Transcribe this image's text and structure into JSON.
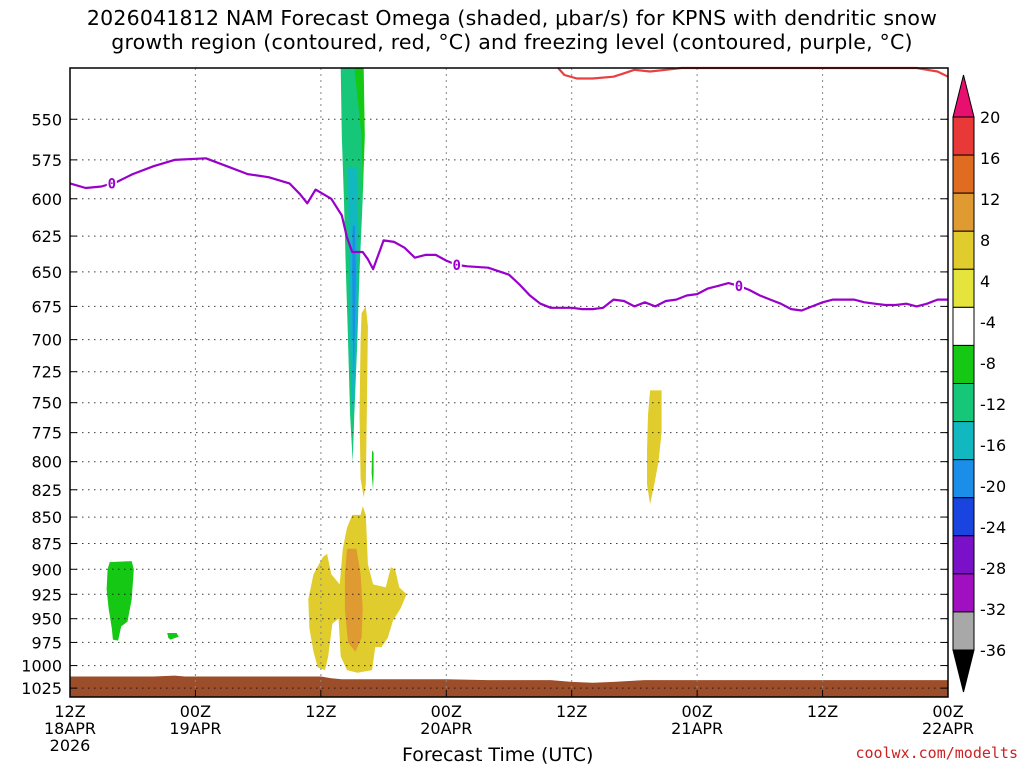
{
  "title": "2026041812 NAM Forecast Omega (shaded, μbar/s) for KPNS with dendritic snow\ngrowth region (contoured, red, °C) and freezing level (contoured, purple, °C)",
  "credit": "coolwx.com/modelts",
  "chart_data": {
    "type": "time-height cross-section",
    "xlabel": "Forecast Time (UTC)",
    "ylabel": "",
    "x_ticks": [
      {
        "line1": "12Z",
        "line2": "18APR",
        "line3": "2026",
        "hours": 0
      },
      {
        "line1": "00Z",
        "line2": "19APR",
        "line3": "",
        "hours": 12
      },
      {
        "line1": "12Z",
        "line2": "",
        "line3": "",
        "hours": 24
      },
      {
        "line1": "00Z",
        "line2": "20APR",
        "line3": "",
        "hours": 36
      },
      {
        "line1": "12Z",
        "line2": "",
        "line3": "",
        "hours": 48
      },
      {
        "line1": "00Z",
        "line2": "21APR",
        "line3": "",
        "hours": 60
      },
      {
        "line1": "12Z",
        "line2": "",
        "line3": "",
        "hours": 72
      },
      {
        "line1": "00Z",
        "line2": "22APR",
        "line3": "",
        "hours": 84
      }
    ],
    "xlim_hours": [
      0,
      84
    ],
    "y_ticks": [
      550,
      575,
      600,
      625,
      650,
      675,
      700,
      725,
      750,
      775,
      800,
      825,
      850,
      875,
      900,
      925,
      950,
      975,
      1000,
      1025
    ],
    "ylim_hPa": [
      520,
      1035
    ],
    "y_scale": "log-pressure",
    "grid": "dotted",
    "colorbar": {
      "labels": [
        "20",
        "16",
        "12",
        "8",
        "4",
        "-4",
        "-8",
        "-12",
        "-16",
        "-20",
        "-24",
        "-28",
        "-32",
        "-36"
      ],
      "colors": [
        "#e8106e",
        "#e83838",
        "#e06c22",
        "#e09a32",
        "#e0cc2c",
        "#e4e43c",
        "#ffffff",
        "#14c814",
        "#16c77a",
        "#12b8c0",
        "#1a8ee8",
        "#1a44e0",
        "#7a10c8",
        "#a010c0",
        "#a8a8a8",
        "#000000"
      ]
    },
    "freezing_level": {
      "label": "0",
      "color": "#9900cc",
      "points": [
        [
          0,
          590
        ],
        [
          1.5,
          593
        ],
        [
          3,
          592
        ],
        [
          4.5,
          589
        ],
        [
          6,
          584
        ],
        [
          8,
          579
        ],
        [
          10,
          575
        ],
        [
          13,
          574
        ],
        [
          15,
          579
        ],
        [
          17,
          584
        ],
        [
          19,
          586
        ],
        [
          21,
          590
        ],
        [
          22,
          597
        ],
        [
          22.7,
          603
        ],
        [
          23.5,
          594
        ],
        [
          25,
          600
        ],
        [
          26,
          611
        ],
        [
          26.5,
          626
        ],
        [
          27,
          636
        ],
        [
          28,
          636
        ],
        [
          28.5,
          641
        ],
        [
          29,
          648
        ],
        [
          30,
          628
        ],
        [
          31,
          629
        ],
        [
          32,
          633
        ],
        [
          33,
          640
        ],
        [
          34,
          638
        ],
        [
          35,
          638
        ],
        [
          36,
          642
        ],
        [
          37,
          645
        ],
        [
          38,
          646
        ],
        [
          40,
          647
        ],
        [
          42,
          652
        ],
        [
          43,
          659
        ],
        [
          44,
          667
        ],
        [
          45,
          673
        ],
        [
          46,
          676
        ],
        [
          48,
          676
        ],
        [
          49,
          677
        ],
        [
          50,
          677
        ],
        [
          51,
          676
        ],
        [
          52,
          670
        ],
        [
          53,
          671
        ],
        [
          54,
          675
        ],
        [
          55,
          672
        ],
        [
          56,
          675
        ],
        [
          57,
          671
        ],
        [
          58,
          670
        ],
        [
          59,
          667
        ],
        [
          60,
          666
        ],
        [
          61,
          662
        ],
        [
          62,
          660
        ],
        [
          63,
          658
        ],
        [
          64,
          660
        ],
        [
          65,
          663
        ],
        [
          66,
          667
        ],
        [
          67,
          670
        ],
        [
          68,
          673
        ],
        [
          69,
          677
        ],
        [
          70,
          678
        ],
        [
          71,
          675
        ],
        [
          72,
          672
        ],
        [
          73,
          670
        ],
        [
          74,
          670
        ],
        [
          75,
          670
        ],
        [
          76,
          672
        ],
        [
          77,
          673
        ],
        [
          78,
          674
        ],
        [
          79,
          674
        ],
        [
          80,
          673
        ],
        [
          81,
          675
        ],
        [
          82,
          673
        ],
        [
          83,
          670
        ],
        [
          84,
          670
        ]
      ]
    },
    "dgz_contour": {
      "color": "#e84040",
      "points": [
        [
          46.7,
          520
        ],
        [
          47.3,
          524
        ],
        [
          48.5,
          526
        ],
        [
          50,
          526
        ],
        [
          52,
          525
        ],
        [
          53,
          523
        ],
        [
          54,
          521
        ],
        [
          55.5,
          522
        ],
        [
          57,
          521
        ],
        [
          58.5,
          520
        ],
        [
          60,
          520
        ],
        [
          61,
          520
        ],
        [
          70,
          520
        ],
        [
          81,
          520
        ],
        [
          82,
          521
        ],
        [
          83,
          522
        ],
        [
          84,
          525
        ]
      ]
    },
    "omega_regions": [
      {
        "value": -12,
        "color": "#16c77a",
        "points": [
          [
            25.9,
            520
          ],
          [
            27.6,
            520
          ],
          [
            27.9,
            545
          ],
          [
            28.0,
            600
          ],
          [
            27.7,
            650
          ],
          [
            27.5,
            700
          ],
          [
            27.2,
            760
          ],
          [
            27.05,
            800
          ],
          [
            26.8,
            760
          ],
          [
            26.6,
            700
          ],
          [
            26.4,
            650
          ],
          [
            26.2,
            600
          ],
          [
            26.0,
            560
          ]
        ]
      },
      {
        "value": -16,
        "color": "#12b8c0",
        "points": [
          [
            26.6,
            580
          ],
          [
            27.4,
            580
          ],
          [
            27.6,
            620
          ],
          [
            27.5,
            680
          ],
          [
            27.3,
            720
          ],
          [
            27.1,
            765
          ],
          [
            26.9,
            740
          ],
          [
            26.8,
            700
          ],
          [
            26.7,
            650
          ]
        ]
      },
      {
        "value": -20,
        "color": "#1a8ee8",
        "points": [
          [
            27.05,
            618
          ],
          [
            27.25,
            618
          ],
          [
            27.35,
            650
          ],
          [
            27.25,
            695
          ],
          [
            27.15,
            730
          ],
          [
            27.05,
            695
          ],
          [
            27.0,
            650
          ]
        ]
      },
      {
        "value": -8,
        "color": "#14c814",
        "points": [
          [
            27.2,
            520
          ],
          [
            28.1,
            520
          ],
          [
            28.2,
            560
          ],
          [
            28.0,
            600
          ],
          [
            27.9,
            560
          ]
        ]
      },
      {
        "value": -8,
        "color": "#14c814",
        "points": [
          [
            28.9,
            790
          ],
          [
            29.05,
            792
          ],
          [
            29.05,
            810
          ],
          [
            29.0,
            825
          ],
          [
            28.85,
            810
          ]
        ]
      },
      {
        "value": -8,
        "color": "#14c814",
        "points": [
          [
            3.8,
            893
          ],
          [
            5.9,
            892
          ],
          [
            6.1,
            900
          ],
          [
            5.9,
            930
          ],
          [
            5.5,
            953
          ],
          [
            4.9,
            958
          ],
          [
            4.6,
            973
          ],
          [
            4.1,
            972
          ],
          [
            4.0,
            960
          ],
          [
            3.7,
            940
          ],
          [
            3.5,
            920
          ],
          [
            3.6,
            900
          ]
        ]
      },
      {
        "value": -8,
        "color": "#14c814",
        "points": [
          [
            9.3,
            965
          ],
          [
            10.2,
            965
          ],
          [
            10.4,
            969
          ],
          [
            9.6,
            972
          ],
          [
            9.4,
            970
          ]
        ]
      },
      {
        "value": 4,
        "color": "#e0cc2c",
        "points": [
          [
            27.9,
            680
          ],
          [
            28.3,
            675
          ],
          [
            28.5,
            690
          ],
          [
            28.4,
            760
          ],
          [
            28.3,
            820
          ],
          [
            28.1,
            832
          ],
          [
            27.8,
            815
          ],
          [
            27.7,
            760
          ],
          [
            27.8,
            700
          ]
        ]
      },
      {
        "value": 4,
        "color": "#e0cc2c",
        "points": [
          [
            27.0,
            848
          ],
          [
            27.8,
            848
          ],
          [
            28.0,
            840
          ],
          [
            28.3,
            848
          ],
          [
            28.4,
            870
          ],
          [
            28.5,
            895
          ],
          [
            29.0,
            915
          ],
          [
            30.2,
            918
          ],
          [
            30.7,
            898
          ],
          [
            31.1,
            900
          ],
          [
            31.5,
            918
          ],
          [
            32.2,
            925
          ],
          [
            31.6,
            940
          ],
          [
            30.9,
            952
          ],
          [
            30.4,
            970
          ],
          [
            29.8,
            980
          ],
          [
            29.2,
            980
          ],
          [
            28.9,
            1005
          ],
          [
            27.5,
            1008
          ],
          [
            26.5,
            1005
          ],
          [
            25.9,
            990
          ],
          [
            25.7,
            950
          ],
          [
            25.1,
            955
          ],
          [
            24.7,
            990
          ],
          [
            24.4,
            1005
          ],
          [
            23.7,
            1002
          ],
          [
            23.3,
            985
          ],
          [
            22.9,
            960
          ],
          [
            22.8,
            930
          ],
          [
            23.3,
            905
          ],
          [
            24.2,
            888
          ],
          [
            24.6,
            885
          ],
          [
            25.0,
            905
          ],
          [
            25.8,
            915
          ],
          [
            26.1,
            880
          ],
          [
            26.5,
            860
          ]
        ]
      },
      {
        "value": 8,
        "color": "#e09a32",
        "points": [
          [
            26.5,
            880
          ],
          [
            27.4,
            880
          ],
          [
            27.8,
            905
          ],
          [
            28.0,
            940
          ],
          [
            27.9,
            970
          ],
          [
            27.3,
            985
          ],
          [
            26.6,
            975
          ],
          [
            26.3,
            940
          ],
          [
            26.3,
            905
          ]
        ]
      },
      {
        "value": 4,
        "color": "#e0cc2c",
        "points": [
          [
            55.5,
            740
          ],
          [
            56.6,
            740
          ],
          [
            56.6,
            775
          ],
          [
            56.3,
            800
          ],
          [
            55.9,
            820
          ],
          [
            55.5,
            838
          ],
          [
            55.2,
            820
          ],
          [
            55.2,
            790
          ],
          [
            55.3,
            760
          ]
        ]
      }
    ],
    "terrain": {
      "color": "#9c4e2a",
      "points": [
        [
          0,
          1012
        ],
        [
          8,
          1012
        ],
        [
          10,
          1011
        ],
        [
          11,
          1012
        ],
        [
          24,
          1012
        ],
        [
          25,
          1014
        ],
        [
          26,
          1015
        ],
        [
          36,
          1015
        ],
        [
          40,
          1016
        ],
        [
          46,
          1016
        ],
        [
          48,
          1018
        ],
        [
          50,
          1019
        ],
        [
          52,
          1018
        ],
        [
          55,
          1016
        ],
        [
          60,
          1016
        ],
        [
          84,
          1016
        ]
      ]
    }
  }
}
